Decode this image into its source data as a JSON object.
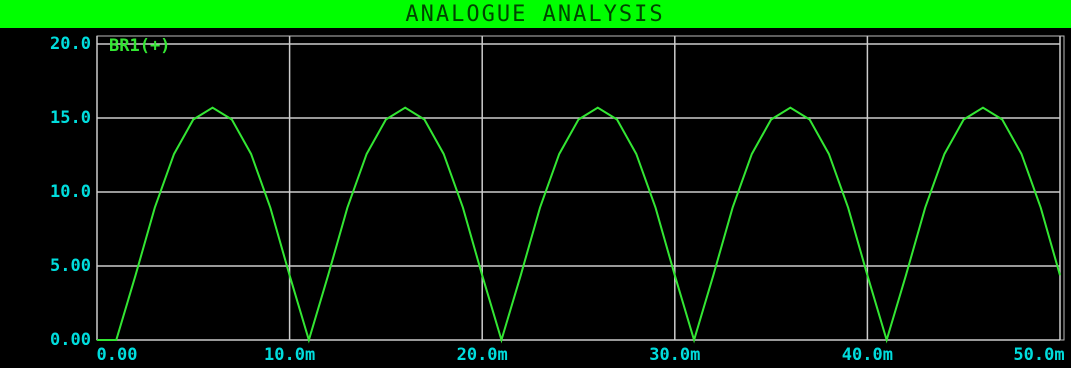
{
  "chart_data": {
    "type": "line",
    "title": "ANALOGUE ANALYSIS",
    "x": [
      0,
      0.001,
      0.002,
      0.003,
      0.004,
      0.005,
      0.006,
      0.007,
      0.008,
      0.009,
      0.01,
      0.011,
      0.012,
      0.013,
      0.014,
      0.015,
      0.016,
      0.017,
      0.018,
      0.019,
      0.02,
      0.021,
      0.022,
      0.023,
      0.024,
      0.025,
      0.026,
      0.027,
      0.028,
      0.029,
      0.03,
      0.031,
      0.032,
      0.033,
      0.034,
      0.035,
      0.036,
      0.037,
      0.038,
      0.039,
      0.04,
      0.041,
      0.042,
      0.043,
      0.044,
      0.045,
      0.046,
      0.047,
      0.048,
      0.049,
      0.05
    ],
    "series": [
      {
        "name": "BR1(+)",
        "color": "#33e633",
        "values": [
          0,
          0,
          4.37,
          8.94,
          12.57,
          14.9,
          15.7,
          14.9,
          12.57,
          8.94,
          4.37,
          0,
          4.37,
          8.94,
          12.57,
          14.9,
          15.7,
          14.9,
          12.57,
          8.94,
          4.37,
          0,
          4.37,
          8.94,
          12.57,
          14.9,
          15.7,
          14.9,
          12.57,
          8.94,
          4.37,
          0,
          4.37,
          8.94,
          12.57,
          14.9,
          15.7,
          14.9,
          12.57,
          8.94,
          4.37,
          0,
          4.37,
          8.94,
          12.57,
          14.9,
          15.7,
          14.9,
          12.57,
          8.94,
          4.37
        ]
      }
    ],
    "xlim": [
      0,
      0.05
    ],
    "xticks": [
      {
        "value": 0,
        "label": "0.00"
      },
      {
        "value": 0.01,
        "label": "10.0m"
      },
      {
        "value": 0.02,
        "label": "20.0m"
      },
      {
        "value": 0.03,
        "label": "30.0m"
      },
      {
        "value": 0.04,
        "label": "40.0m"
      },
      {
        "value": 0.05,
        "label": "50.0m"
      }
    ],
    "ylim": [
      0,
      20
    ],
    "yticks": [
      {
        "value": 0,
        "label": "0.00"
      },
      {
        "value": 5,
        "label": "5.00"
      },
      {
        "value": 10,
        "label": "10.0"
      },
      {
        "value": 15,
        "label": "15.0"
      },
      {
        "value": 20,
        "label": "20.0"
      }
    ],
    "grid": true
  }
}
